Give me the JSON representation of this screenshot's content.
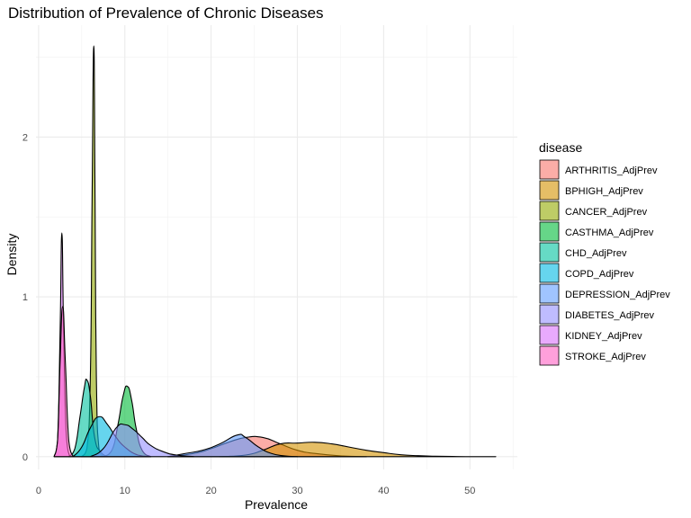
{
  "chart_data": {
    "type": "area",
    "title": "Distribution of Prevalence of Chronic Diseases",
    "xlabel": "Prevalence",
    "ylabel": "Density",
    "xlim": [
      -0.3,
      55.5
    ],
    "ylim": [
      -0.08,
      2.7
    ],
    "x_ticks": [
      0,
      10,
      20,
      30,
      40,
      50
    ],
    "y_ticks": [
      0,
      1,
      2
    ],
    "grid": true,
    "legend": {
      "title": "disease",
      "position": "right"
    },
    "series": [
      {
        "name": "ARTHRITIS_AdjPrev",
        "color": "#F8766D",
        "points": [
          [
            15,
            0
          ],
          [
            18,
            0.02
          ],
          [
            20,
            0.05
          ],
          [
            22,
            0.09
          ],
          [
            24,
            0.12
          ],
          [
            26,
            0.12
          ],
          [
            28,
            0.08
          ],
          [
            30,
            0.04
          ],
          [
            32,
            0.02
          ],
          [
            35,
            0.005
          ],
          [
            38,
            0
          ]
        ]
      },
      {
        "name": "BPHIGH_AdjPrev",
        "color": "#D39200",
        "points": [
          [
            21,
            0
          ],
          [
            24,
            0.01
          ],
          [
            26,
            0.04
          ],
          [
            28,
            0.08
          ],
          [
            30,
            0.085
          ],
          [
            32,
            0.09
          ],
          [
            34,
            0.08
          ],
          [
            36,
            0.06
          ],
          [
            38,
            0.04
          ],
          [
            40,
            0.025
          ],
          [
            42,
            0.012
          ],
          [
            44,
            0.006
          ],
          [
            46,
            0.003
          ],
          [
            48,
            0.001
          ],
          [
            50,
            0
          ],
          [
            53,
            0
          ]
        ]
      },
      {
        "name": "CANCER_AdjPrev",
        "color": "#93AA00",
        "points": [
          [
            5,
            0
          ],
          [
            5.6,
            0.05
          ],
          [
            6.0,
            0.5
          ],
          [
            6.2,
            1.6
          ],
          [
            6.4,
            2.57
          ],
          [
            6.55,
            1.6
          ],
          [
            6.7,
            0.5
          ],
          [
            7.0,
            0.05
          ],
          [
            7.5,
            0
          ]
        ]
      },
      {
        "name": "CASTHMA_AdjPrev",
        "color": "#00BA38",
        "points": [
          [
            7.5,
            0
          ],
          [
            8.5,
            0.04
          ],
          [
            9.2,
            0.2
          ],
          [
            9.8,
            0.38
          ],
          [
            10.3,
            0.44
          ],
          [
            10.8,
            0.35
          ],
          [
            11.3,
            0.18
          ],
          [
            12,
            0.04
          ],
          [
            13,
            0
          ]
        ]
      },
      {
        "name": "CHD_AdjPrev",
        "color": "#00C19F",
        "points": [
          [
            3.5,
            0
          ],
          [
            4.2,
            0.05
          ],
          [
            4.8,
            0.25
          ],
          [
            5.3,
            0.43
          ],
          [
            5.6,
            0.48
          ],
          [
            6.0,
            0.38
          ],
          [
            6.5,
            0.12
          ],
          [
            7.2,
            0.03
          ],
          [
            8,
            0
          ]
        ]
      },
      {
        "name": "COPD_AdjPrev",
        "color": "#00B9E3",
        "points": [
          [
            4,
            0
          ],
          [
            5,
            0.06
          ],
          [
            6,
            0.18
          ],
          [
            7,
            0.25
          ],
          [
            8,
            0.2
          ],
          [
            9,
            0.12
          ],
          [
            10,
            0.06
          ],
          [
            11.5,
            0.01
          ],
          [
            13,
            0
          ]
        ]
      },
      {
        "name": "DEPRESSION_AdjPrev",
        "color": "#619CFF",
        "points": [
          [
            15,
            0
          ],
          [
            17,
            0.02
          ],
          [
            19,
            0.04
          ],
          [
            21,
            0.08
          ],
          [
            23,
            0.135
          ],
          [
            24,
            0.12
          ],
          [
            25.5,
            0.06
          ],
          [
            27,
            0.02
          ],
          [
            28.5,
            0.005
          ],
          [
            30,
            0
          ]
        ]
      },
      {
        "name": "DIABETES_AdjPrev",
        "color": "#9590FF",
        "points": [
          [
            6,
            0
          ],
          [
            7.5,
            0.05
          ],
          [
            9,
            0.18
          ],
          [
            10,
            0.2
          ],
          [
            11,
            0.17
          ],
          [
            12,
            0.12
          ],
          [
            13,
            0.07
          ],
          [
            14.5,
            0.03
          ],
          [
            16,
            0.01
          ],
          [
            18,
            0
          ]
        ]
      },
      {
        "name": "KIDNEY_AdjPrev",
        "color": "#DB72FB",
        "points": [
          [
            1.8,
            0
          ],
          [
            2.2,
            0.1
          ],
          [
            2.5,
            0.8
          ],
          [
            2.7,
            1.4
          ],
          [
            2.9,
            0.8
          ],
          [
            3.2,
            0.15
          ],
          [
            3.6,
            0
          ]
        ]
      },
      {
        "name": "STROKE_AdjPrev",
        "color": "#FF61C3",
        "points": [
          [
            1.8,
            0
          ],
          [
            2.2,
            0.1
          ],
          [
            2.5,
            0.6
          ],
          [
            2.8,
            0.94
          ],
          [
            3.1,
            0.6
          ],
          [
            3.5,
            0.1
          ],
          [
            4,
            0
          ]
        ]
      }
    ]
  }
}
